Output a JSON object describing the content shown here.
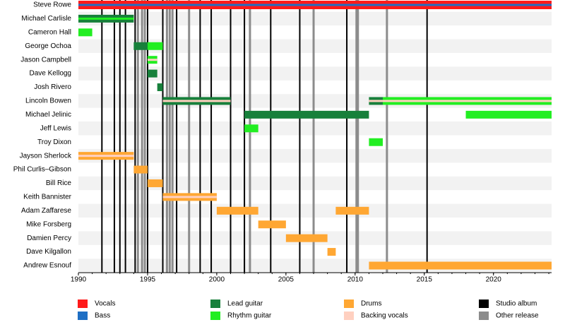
{
  "chart_data": {
    "type": "timeline",
    "xlim": [
      1990,
      2024.2
    ],
    "xticks": [
      1990,
      1995,
      2000,
      2005,
      2010,
      2015,
      2020
    ],
    "roles": [
      {
        "name": "Vocals",
        "color": "#ff1a1a"
      },
      {
        "name": "Bass",
        "color": "#1f6fc4"
      },
      {
        "name": "Lead guitar",
        "color": "#17803b"
      },
      {
        "name": "Rhythm guitar",
        "color": "#22ee22"
      },
      {
        "name": "Drums",
        "color": "#ffa733"
      },
      {
        "name": "Backing vocals",
        "color": "#ffd0c0"
      },
      {
        "name": "Studio album",
        "color": "#000000"
      },
      {
        "name": "Other release",
        "color": "#8c8c8c"
      }
    ],
    "members": [
      {
        "name": "Steve Rowe",
        "spans": [
          {
            "role": "Vocals",
            "stripe": "Bass",
            "start": 1990,
            "end": 2024.2
          }
        ]
      },
      {
        "name": "Michael Carlisle",
        "spans": [
          {
            "role": "Lead guitar",
            "stripe": "Rhythm guitar",
            "start": 1990,
            "end": 1994
          }
        ]
      },
      {
        "name": "Cameron Hall",
        "spans": [
          {
            "role": "Rhythm guitar",
            "start": 1990,
            "end": 1991
          }
        ]
      },
      {
        "name": "George Ochoa",
        "spans": [
          {
            "role": "Lead guitar",
            "start": 1994,
            "end": 1995
          },
          {
            "role": "Rhythm guitar",
            "start": 1995,
            "end": 1996.1
          }
        ]
      },
      {
        "name": "Jason Campbell",
        "spans": [
          {
            "role": "Rhythm guitar",
            "stripe": "Backing vocals",
            "start": 1995,
            "end": 1995.7
          }
        ]
      },
      {
        "name": "Dave Kellogg",
        "spans": [
          {
            "role": "Lead guitar",
            "start": 1995,
            "end": 1995.7
          }
        ]
      },
      {
        "name": "Josh Rivero",
        "spans": [
          {
            "role": "Lead guitar",
            "start": 1995.7,
            "end": 1996.1
          }
        ]
      },
      {
        "name": "Lincoln Bowen",
        "spans": [
          {
            "role": "Lead guitar",
            "stripe": "Backing vocals",
            "start": 1996.1,
            "end": 2001
          },
          {
            "role": "Lead guitar",
            "stripe": "Backing vocals",
            "start": 2011,
            "end": 2012
          },
          {
            "role": "Rhythm guitar",
            "stripe": "Backing vocals",
            "start": 2012,
            "end": 2024.2
          }
        ]
      },
      {
        "name": "Michael Jelinic",
        "spans": [
          {
            "role": "Lead guitar",
            "start": 2002,
            "end": 2011
          },
          {
            "role": "Rhythm guitar",
            "start": 2018,
            "end": 2024.2
          }
        ]
      },
      {
        "name": "Jeff Lewis",
        "spans": [
          {
            "role": "Rhythm guitar",
            "start": 2002,
            "end": 2003
          }
        ]
      },
      {
        "name": "Troy Dixon",
        "spans": [
          {
            "role": "Rhythm guitar",
            "start": 2011,
            "end": 2012
          }
        ]
      },
      {
        "name": "Jayson Sherlock",
        "spans": [
          {
            "role": "Drums",
            "stripe": "Backing vocals",
            "start": 1990,
            "end": 1994
          }
        ]
      },
      {
        "name": "Phil Curlis–Gibson",
        "spans": [
          {
            "role": "Drums",
            "start": 1994,
            "end": 1995
          }
        ]
      },
      {
        "name": "Bill Rice",
        "spans": [
          {
            "role": "Drums",
            "start": 1995,
            "end": 1996.1
          }
        ]
      },
      {
        "name": "Keith Bannister",
        "spans": [
          {
            "role": "Drums",
            "stripe": "Backing vocals",
            "start": 1996.1,
            "end": 2000
          }
        ]
      },
      {
        "name": "Adam Zaffarese",
        "spans": [
          {
            "role": "Drums",
            "start": 2000,
            "end": 2003
          },
          {
            "role": "Drums",
            "start": 2008.6,
            "end": 2011
          }
        ]
      },
      {
        "name": "Mike Forsberg",
        "spans": [
          {
            "role": "Drums",
            "start": 2003,
            "end": 2005
          }
        ]
      },
      {
        "name": "Damien Percy",
        "spans": [
          {
            "role": "Drums",
            "start": 2005,
            "end": 2008
          }
        ]
      },
      {
        "name": "Dave Kilgallon",
        "spans": [
          {
            "role": "Drums",
            "start": 2008,
            "end": 2008.6
          }
        ]
      },
      {
        "name": "Andrew Esnouf",
        "spans": [
          {
            "role": "Drums",
            "start": 2011,
            "end": 2024.2
          }
        ]
      }
    ],
    "studio_albums": [
      1991.7,
      1992.6,
      1993.0,
      1993.4,
      1994.1,
      1995.0,
      1996.1,
      1997.1,
      1998.8,
      1999.6,
      2001.0,
      2002.0,
      2003.9,
      2006.0,
      2009.4,
      2015.2
    ],
    "other_releases": [
      1994.3,
      1994.6,
      1994.8,
      1996.4,
      1996.6,
      1996.8,
      1998.0,
      2002.4,
      2007.0,
      2010.1,
      2010.2,
      2012.3
    ]
  }
}
